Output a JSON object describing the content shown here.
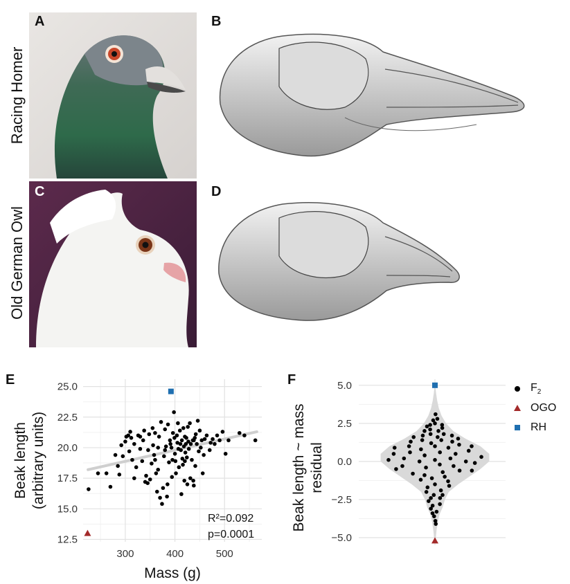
{
  "panels": {
    "A": "A",
    "B": "B",
    "C": "C",
    "D": "D",
    "E": "E",
    "F": "F"
  },
  "row_labels": {
    "top": "Racing Homer",
    "bottom": "Old German Owl"
  },
  "stats": {
    "r2": "R²=0.092",
    "p": "p=0.0001"
  },
  "legend": {
    "items": [
      {
        "label": "F2",
        "symbol": "circle",
        "color": "#000000"
      },
      {
        "label": "OGO",
        "symbol": "triangle",
        "color": "#a32a2a"
      },
      {
        "label": "RH",
        "symbol": "square",
        "color": "#1f6fb0"
      }
    ]
  },
  "chart_data": [
    {
      "type": "scatter",
      "panel": "E",
      "xlabel": "Mass (g)",
      "ylabel": "Beak length (arbitrary units)",
      "xticks": [
        300,
        400,
        500
      ],
      "yticks": [
        12.5,
        15.0,
        17.5,
        20.0,
        22.5,
        25.0
      ],
      "tick_labels_y": [
        "12.5",
        "15.0",
        "17.5",
        "20.0",
        "22.5",
        "25.0"
      ],
      "tick_labels_x": [
        "300",
        "400",
        "500"
      ],
      "xlim": [
        215,
        575
      ],
      "ylim": [
        12.3,
        25.6
      ],
      "grid": true,
      "fit_line": {
        "x": [
          225,
          565
        ],
        "y": [
          18.2,
          21.3
        ]
      },
      "series": [
        {
          "name": "F2",
          "symbol": "circle",
          "color": "#000000",
          "points": [
            [
              226,
              16.6
            ],
            [
              245,
              17.9
            ],
            [
              262,
              17.9
            ],
            [
              270,
              16.8
            ],
            [
              280,
              19.4
            ],
            [
              285,
              18.5
            ],
            [
              288,
              17.8
            ],
            [
              295,
              19.3
            ],
            [
              300,
              20.5
            ],
            [
              302,
              20.9
            ],
            [
              306,
              21.0
            ],
            [
              308,
              19.7
            ],
            [
              310,
              21.3
            ],
            [
              312,
              20.8
            ],
            [
              314,
              19.0
            ],
            [
              318,
              17.5
            ],
            [
              322,
              18.4
            ],
            [
              326,
              21.0
            ],
            [
              330,
              19.9
            ],
            [
              334,
              18.9
            ],
            [
              336,
              20.6
            ],
            [
              338,
              21.4
            ],
            [
              340,
              17.2
            ],
            [
              342,
              17.7
            ],
            [
              346,
              19.8
            ],
            [
              348,
              21.1
            ],
            [
              350,
              17.4
            ],
            [
              353,
              18.7
            ],
            [
              355,
              21.6
            ],
            [
              356,
              20.2
            ],
            [
              358,
              19.4
            ],
            [
              360,
              21.2
            ],
            [
              362,
              17.9
            ],
            [
              364,
              16.4
            ],
            [
              366,
              20.0
            ],
            [
              368,
              20.9
            ],
            [
              370,
              15.9
            ],
            [
              372,
              22.1
            ],
            [
              374,
              15.4
            ],
            [
              376,
              16.7
            ],
            [
              378,
              19.3
            ],
            [
              380,
              21.5
            ],
            [
              382,
              20.1
            ],
            [
              384,
              16.0
            ],
            [
              386,
              21.9
            ],
            [
              388,
              18.8
            ],
            [
              390,
              20.6
            ],
            [
              391,
              20.3
            ],
            [
              393,
              20.0
            ],
            [
              394,
              17.6
            ],
            [
              395,
              19.0
            ],
            [
              396,
              21.2
            ],
            [
              398,
              22.9
            ],
            [
              399,
              20.8
            ],
            [
              400,
              19.5
            ],
            [
              401,
              18.9
            ],
            [
              402,
              17.9
            ],
            [
              404,
              21.0
            ],
            [
              405,
              20.4
            ],
            [
              406,
              22.0
            ],
            [
              407,
              19.9
            ],
            [
              408,
              18.4
            ],
            [
              410,
              21.4
            ],
            [
              411,
              20.3
            ],
            [
              412,
              19.8
            ],
            [
              413,
              16.2
            ],
            [
              414,
              20.6
            ],
            [
              415,
              19.1
            ],
            [
              416,
              18.6
            ],
            [
              417,
              21.6
            ],
            [
              418,
              20.1
            ],
            [
              419,
              17.3
            ],
            [
              420,
              20.9
            ],
            [
              421,
              19.6
            ],
            [
              422,
              20.3
            ],
            [
              423,
              20.8
            ],
            [
              424,
              19.2
            ],
            [
              425,
              17.0
            ],
            [
              426,
              21.7
            ],
            [
              427,
              20.5
            ],
            [
              428,
              19.9
            ],
            [
              430,
              22.0
            ],
            [
              431,
              17.5
            ],
            [
              432,
              20.3
            ],
            [
              434,
              19.0
            ],
            [
              436,
              20.6
            ],
            [
              437,
              17.3
            ],
            [
              438,
              16.9
            ],
            [
              440,
              20.8
            ],
            [
              441,
              18.5
            ],
            [
              442,
              21.1
            ],
            [
              444,
              20.3
            ],
            [
              446,
              22.2
            ],
            [
              448,
              19.7
            ],
            [
              450,
              21.4
            ],
            [
              452,
              20.0
            ],
            [
              454,
              20.6
            ],
            [
              456,
              17.9
            ],
            [
              460,
              20.7
            ],
            [
              464,
              21.0
            ],
            [
              470,
              19.8
            ],
            [
              476,
              20.7
            ],
            [
              480,
              20.3
            ],
            [
              485,
              21.0
            ],
            [
              490,
              20.6
            ],
            [
              496,
              21.3
            ],
            [
              502,
              19.5
            ],
            [
              508,
              20.6
            ],
            [
              530,
              21.2
            ],
            [
              540,
              21.0
            ],
            [
              562,
              20.6
            ],
            [
              472,
              20.4
            ],
            [
              458,
              19.4
            ],
            [
              380,
              19.8
            ],
            [
              360,
              19.0
            ],
            [
              330,
              20.9
            ],
            [
              318,
              20.3
            ],
            [
              292,
              20.2
            ],
            [
              345,
              17.1
            ],
            [
              385,
              17.0
            ],
            [
              366,
              18.2
            ],
            [
              420,
              18.9
            ],
            [
              438,
              20.6
            ]
          ]
        },
        {
          "name": "OGO",
          "symbol": "triangle",
          "color": "#a32a2a",
          "points": [
            [
              224,
              13.0
            ]
          ]
        },
        {
          "name": "RH",
          "symbol": "square",
          "color": "#1f6fb0",
          "points": [
            [
              392,
              24.6
            ]
          ]
        }
      ]
    },
    {
      "type": "violin",
      "panel": "F",
      "xlabel": "",
      "ylabel": "Beak length ~ mass residual",
      "yticks": [
        -5.0,
        -2.5,
        0.0,
        2.5,
        5.0
      ],
      "tick_labels_y": [
        "−5.0",
        "−2.5",
        "0.0",
        "2.5",
        "5.0"
      ],
      "ylim": [
        -5.5,
        5.4
      ],
      "grid": true,
      "violin_color": "#d9d9d9",
      "series": [
        {
          "name": "F2",
          "symbol": "circle",
          "color": "#000000",
          "points": [
            [
              -0.7,
              -2.6
            ],
            [
              -0.6,
              -3.1
            ],
            [
              -0.5,
              -3.4
            ],
            [
              -0.3,
              -2.9
            ],
            [
              -0.2,
              -3.6
            ],
            [
              0.1,
              -3.9
            ],
            [
              0.2,
              -4.1
            ],
            [
              0.3,
              -3.3
            ],
            [
              0.5,
              -2.4
            ],
            [
              0.6,
              -2.8
            ],
            [
              0.4,
              -1.9
            ],
            [
              -0.4,
              -1.7
            ],
            [
              -0.1,
              -2.2
            ],
            [
              0.0,
              -1.5
            ],
            [
              -0.5,
              -1.2
            ],
            [
              0.5,
              -1.3
            ],
            [
              0.7,
              -1.6
            ],
            [
              -0.6,
              -0.8
            ],
            [
              -0.3,
              -0.9
            ],
            [
              0.2,
              -0.7
            ],
            [
              0.6,
              -0.6
            ],
            [
              -0.7,
              -0.3
            ],
            [
              -0.2,
              -0.4
            ],
            [
              0.1,
              -0.2
            ],
            [
              0.4,
              -0.3
            ],
            [
              0.8,
              -0.1
            ],
            [
              -0.9,
              0.1
            ],
            [
              -0.6,
              0.2
            ],
            [
              -0.3,
              0.0
            ],
            [
              0.0,
              0.1
            ],
            [
              0.3,
              0.2
            ],
            [
              0.6,
              0.0
            ],
            [
              0.9,
              0.3
            ],
            [
              -0.8,
              0.5
            ],
            [
              -0.5,
              0.6
            ],
            [
              -0.2,
              0.4
            ],
            [
              0.1,
              0.6
            ],
            [
              0.4,
              0.5
            ],
            [
              0.7,
              0.7
            ],
            [
              -0.9,
              0.9
            ],
            [
              -0.6,
              1.0
            ],
            [
              -0.3,
              0.8
            ],
            [
              0.0,
              1.0
            ],
            [
              0.3,
              0.9
            ],
            [
              0.6,
              1.1
            ],
            [
              0.85,
              1.0
            ],
            [
              -0.7,
              1.3
            ],
            [
              -0.4,
              1.4
            ],
            [
              -0.1,
              1.2
            ],
            [
              0.2,
              1.4
            ],
            [
              0.5,
              1.3
            ],
            [
              0.8,
              1.5
            ],
            [
              -0.8,
              1.6
            ],
            [
              -0.5,
              1.7
            ],
            [
              -0.2,
              1.8
            ],
            [
              0.1,
              1.6
            ],
            [
              0.4,
              1.8
            ],
            [
              0.7,
              1.7
            ],
            [
              -0.6,
              2.0
            ],
            [
              -0.3,
              2.1
            ],
            [
              0.2,
              2.0
            ],
            [
              0.5,
              2.2
            ],
            [
              -0.4,
              2.4
            ],
            [
              0.0,
              2.5
            ],
            [
              0.3,
              2.8
            ],
            [
              -0.2,
              2.7
            ],
            [
              0.1,
              3.1
            ],
            [
              -0.6,
              2.3
            ],
            [
              0.6,
              2.4
            ],
            [
              -0.9,
              -0.5
            ],
            [
              0.9,
              -0.6
            ],
            [
              -0.4,
              -2.4
            ],
            [
              0.3,
              -1.0
            ],
            [
              -0.1,
              -1.1
            ],
            [
              0.65,
              -2.2
            ],
            [
              -0.65,
              -2.0
            ]
          ]
        },
        {
          "name": "OGO",
          "symbol": "triangle",
          "color": "#a32a2a",
          "points": [
            [
              0.0,
              -5.2
            ]
          ]
        },
        {
          "name": "RH",
          "symbol": "square",
          "color": "#1f6fb0",
          "points": [
            [
              0.0,
              5.0
            ]
          ]
        }
      ]
    }
  ]
}
